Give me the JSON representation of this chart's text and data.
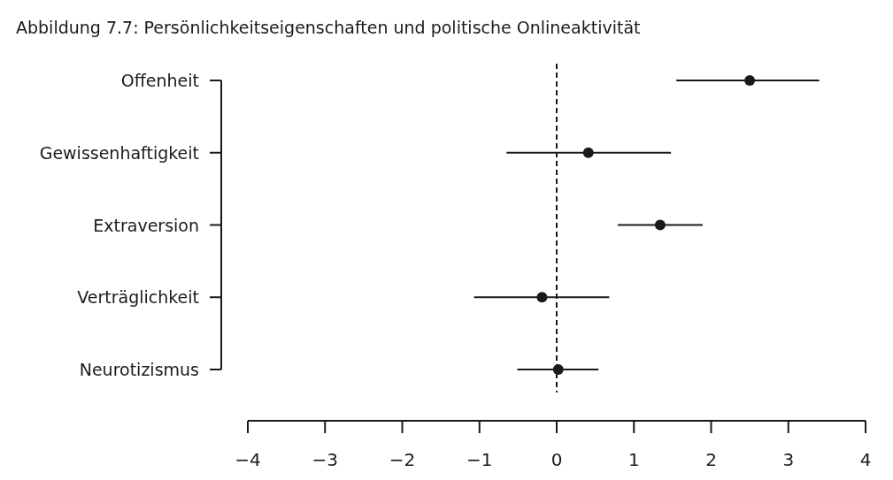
{
  "chart_data": {
    "type": "scatter",
    "title": "Abbildung 7.7: Persönlichkeitseigenschaften und politische Onlineaktivität",
    "orientation": "horizontal",
    "categories": [
      "Offenheit",
      "Gewissenhaftigkeit",
      "Extraversion",
      "Verträglichkeit",
      "Neurotizismus"
    ],
    "values": [
      2.5,
      0.41,
      1.34,
      -0.19,
      0.02
    ],
    "errors": [
      [
        1.55,
        3.4
      ],
      [
        -0.65,
        1.48
      ],
      [
        0.79,
        1.89
      ],
      [
        -1.07,
        0.68
      ],
      [
        -0.51,
        0.54
      ]
    ],
    "color": "#1a1a1a",
    "marker": "circle",
    "xlim": [
      -4,
      4
    ],
    "xticks": [
      {
        "value": -4,
        "label": "−4"
      },
      {
        "value": -3,
        "label": "−3"
      },
      {
        "value": -2,
        "label": "−2"
      },
      {
        "value": -1,
        "label": "−1"
      },
      0,
      1,
      2,
      3,
      4
    ],
    "ref_lines": [
      {
        "axis": "x",
        "value": 0,
        "line_style": "dashed",
        "color": "#1a1a1a"
      }
    ],
    "grid": false
  }
}
